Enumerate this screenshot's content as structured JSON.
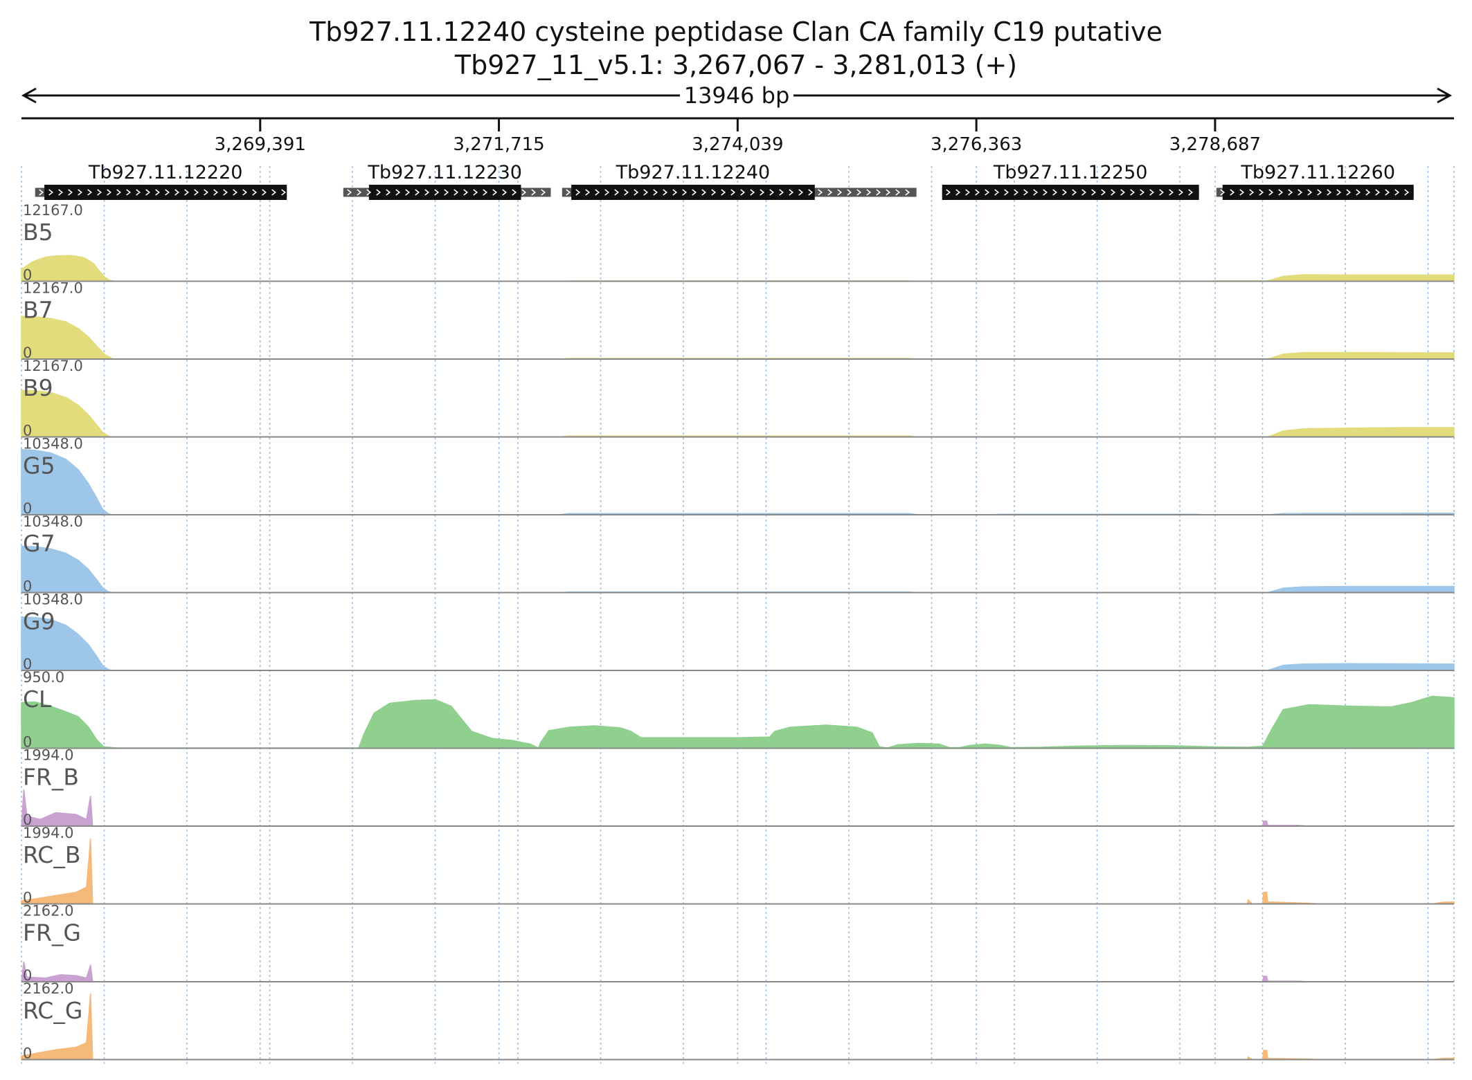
{
  "title": {
    "line1": "Tb927.11.12240  cysteine peptidase  Clan CA  family C19  putative",
    "line2": "Tb927_11_v5.1: 3,267,067 - 3,281,013 (+)"
  },
  "span_label": "13946 bp",
  "chart_data": {
    "type": "area",
    "chromosome": "Tb927_11_v5.1",
    "strand": "+",
    "xlim": [
      3267067,
      3281013
    ],
    "ticks": [
      {
        "value": 3269391,
        "label": "3,269,391"
      },
      {
        "value": 3271715,
        "label": "3,271,715"
      },
      {
        "value": 3274039,
        "label": "3,274,039"
      },
      {
        "value": 3276363,
        "label": "3,276,363"
      },
      {
        "value": 3278687,
        "label": "3,278,687"
      }
    ],
    "genes": [
      {
        "name": "Tb927.11.12220",
        "cds": [
          3267290,
          3269650
        ],
        "utr": [
          3267200,
          3269650
        ]
      },
      {
        "name": "Tb927.11.12230",
        "cds": [
          3270450,
          3271930
        ],
        "utr": [
          3270200,
          3272220
        ]
      },
      {
        "name": "Tb927.11.12240",
        "cds": [
          3272420,
          3274790
        ],
        "utr": [
          3272330,
          3275780
        ]
      },
      {
        "name": "Tb927.11.12250",
        "cds": [
          3276030,
          3278530
        ],
        "utr": [
          3276030,
          3278530
        ]
      },
      {
        "name": "Tb927.11.12260",
        "cds": [
          3278760,
          3280620
        ],
        "utr": [
          3278700,
          3280620
        ]
      }
    ],
    "tracks": [
      {
        "name": "B5",
        "ymax_label": "12167.0",
        "ymin_label": "0",
        "ymax": 12167,
        "color": "#e3dc7c",
        "points": [
          [
            3267067,
            2200
          ],
          [
            3267180,
            3600
          ],
          [
            3267300,
            4400
          ],
          [
            3267420,
            4650
          ],
          [
            3267560,
            4700
          ],
          [
            3267680,
            4300
          ],
          [
            3267770,
            3200
          ],
          [
            3267820,
            2000
          ],
          [
            3267880,
            700
          ],
          [
            3267930,
            150
          ],
          [
            3267980,
            0
          ],
          [
            3272300,
            0
          ],
          [
            3272400,
            60
          ],
          [
            3275700,
            60
          ],
          [
            3275800,
            0
          ],
          [
            3278600,
            0
          ],
          [
            3278700,
            80
          ],
          [
            3279200,
            80
          ],
          [
            3279350,
            900
          ],
          [
            3279550,
            1200
          ],
          [
            3280000,
            1150
          ],
          [
            3281013,
            1150
          ]
        ]
      },
      {
        "name": "B7",
        "ymax_label": "12167.0",
        "ymin_label": "0",
        "ymax": 12167,
        "color": "#e3dc7c",
        "points": [
          [
            3267067,
            7800
          ],
          [
            3267200,
            7700
          ],
          [
            3267350,
            7400
          ],
          [
            3267500,
            6800
          ],
          [
            3267620,
            5600
          ],
          [
            3267720,
            4000
          ],
          [
            3267800,
            2400
          ],
          [
            3267880,
            800
          ],
          [
            3267950,
            100
          ],
          [
            3268000,
            0
          ],
          [
            3272300,
            0
          ],
          [
            3272400,
            120
          ],
          [
            3275700,
            120
          ],
          [
            3275800,
            0
          ],
          [
            3279200,
            0
          ],
          [
            3279350,
            900
          ],
          [
            3279550,
            1200
          ],
          [
            3280000,
            1200
          ],
          [
            3281013,
            1150
          ]
        ]
      },
      {
        "name": "B9",
        "ymax_label": "12167.0",
        "ymin_label": "0",
        "ymax": 12167,
        "color": "#e3dc7c",
        "points": [
          [
            3267067,
            8500
          ],
          [
            3267200,
            8400
          ],
          [
            3267350,
            8100
          ],
          [
            3267500,
            7200
          ],
          [
            3267620,
            5800
          ],
          [
            3267720,
            4000
          ],
          [
            3267800,
            2200
          ],
          [
            3267860,
            800
          ],
          [
            3267920,
            100
          ],
          [
            3267970,
            0
          ],
          [
            3272300,
            0
          ],
          [
            3272400,
            180
          ],
          [
            3275700,
            180
          ],
          [
            3275800,
            0
          ],
          [
            3279200,
            0
          ],
          [
            3279350,
            1100
          ],
          [
            3279550,
            1500
          ],
          [
            3280000,
            1600
          ],
          [
            3280500,
            1700
          ],
          [
            3281013,
            1700
          ]
        ]
      },
      {
        "name": "G5",
        "ymax_label": "10348.0",
        "ymin_label": "0",
        "ymax": 10348,
        "color": "#9ec6e8",
        "points": [
          [
            3267067,
            10100
          ],
          [
            3267200,
            10000
          ],
          [
            3267350,
            9600
          ],
          [
            3267500,
            8600
          ],
          [
            3267620,
            7000
          ],
          [
            3267720,
            4800
          ],
          [
            3267800,
            2600
          ],
          [
            3267860,
            800
          ],
          [
            3267920,
            100
          ],
          [
            3267970,
            0
          ],
          [
            3272300,
            0
          ],
          [
            3272400,
            200
          ],
          [
            3275700,
            200
          ],
          [
            3275800,
            0
          ],
          [
            3276500,
            0
          ],
          [
            3276600,
            80
          ],
          [
            3278500,
            80
          ],
          [
            3278600,
            0
          ],
          [
            3279200,
            0
          ],
          [
            3279350,
            200
          ],
          [
            3281013,
            250
          ]
        ]
      },
      {
        "name": "G7",
        "ymax_label": "10348.0",
        "ymin_label": "0",
        "ymax": 10348,
        "color": "#9ec6e8",
        "points": [
          [
            3267067,
            7200
          ],
          [
            3267200,
            7100
          ],
          [
            3267350,
            6800
          ],
          [
            3267500,
            6100
          ],
          [
            3267620,
            5000
          ],
          [
            3267720,
            3600
          ],
          [
            3267800,
            2000
          ],
          [
            3267860,
            700
          ],
          [
            3267920,
            100
          ],
          [
            3267970,
            0
          ],
          [
            3272300,
            0
          ],
          [
            3272400,
            100
          ],
          [
            3275700,
            100
          ],
          [
            3275800,
            0
          ],
          [
            3279200,
            0
          ],
          [
            3279350,
            700
          ],
          [
            3279550,
            900
          ],
          [
            3280000,
            950
          ],
          [
            3281013,
            950
          ]
        ]
      },
      {
        "name": "G9",
        "ymax_label": "10348.0",
        "ymin_label": "0",
        "ymax": 10348,
        "color": "#9ec6e8",
        "points": [
          [
            3267067,
            8300
          ],
          [
            3267200,
            8200
          ],
          [
            3267350,
            7900
          ],
          [
            3267500,
            7000
          ],
          [
            3267620,
            5600
          ],
          [
            3267720,
            4000
          ],
          [
            3267800,
            2200
          ],
          [
            3267860,
            700
          ],
          [
            3267920,
            100
          ],
          [
            3267970,
            0
          ],
          [
            3279200,
            0
          ],
          [
            3279350,
            800
          ],
          [
            3279550,
            1000
          ],
          [
            3280000,
            1050
          ],
          [
            3281013,
            1000
          ]
        ]
      },
      {
        "name": "CL",
        "ymax_label": "950.0",
        "ymin_label": "0",
        "ymax": 950,
        "color": "#8fd08f",
        "points": [
          [
            3267067,
            650
          ],
          [
            3267200,
            660
          ],
          [
            3267350,
            600
          ],
          [
            3267500,
            520
          ],
          [
            3267620,
            450
          ],
          [
            3267720,
            300
          ],
          [
            3267800,
            120
          ],
          [
            3267870,
            20
          ],
          [
            3268000,
            5
          ],
          [
            3270350,
            5
          ],
          [
            3270400,
            200
          ],
          [
            3270500,
            500
          ],
          [
            3270650,
            640
          ],
          [
            3270900,
            680
          ],
          [
            3271100,
            690
          ],
          [
            3271250,
            600
          ],
          [
            3271350,
            420
          ],
          [
            3271450,
            240
          ],
          [
            3271650,
            140
          ],
          [
            3271850,
            110
          ],
          [
            3272020,
            60
          ],
          [
            3272100,
            5
          ],
          [
            3272120,
            80
          ],
          [
            3272200,
            250
          ],
          [
            3272400,
            300
          ],
          [
            3272650,
            320
          ],
          [
            3272900,
            290
          ],
          [
            3273000,
            240
          ],
          [
            3273100,
            150
          ],
          [
            3273400,
            150
          ],
          [
            3274000,
            150
          ],
          [
            3274350,
            160
          ],
          [
            3274400,
            240
          ],
          [
            3274550,
            300
          ],
          [
            3274900,
            330
          ],
          [
            3275200,
            300
          ],
          [
            3275350,
            220
          ],
          [
            3275420,
            20
          ],
          [
            3275500,
            5
          ],
          [
            3275600,
            50
          ],
          [
            3275800,
            70
          ],
          [
            3276000,
            60
          ],
          [
            3276100,
            10
          ],
          [
            3276200,
            10
          ],
          [
            3276300,
            40
          ],
          [
            3276450,
            60
          ],
          [
            3276600,
            40
          ],
          [
            3276700,
            10
          ],
          [
            3277000,
            15
          ],
          [
            3277300,
            30
          ],
          [
            3277800,
            40
          ],
          [
            3278300,
            35
          ],
          [
            3278700,
            20
          ],
          [
            3279000,
            15
          ],
          [
            3279150,
            30
          ],
          [
            3279250,
            300
          ],
          [
            3279350,
            550
          ],
          [
            3279600,
            620
          ],
          [
            3280000,
            600
          ],
          [
            3280400,
            590
          ],
          [
            3280600,
            650
          ],
          [
            3280800,
            740
          ],
          [
            3281013,
            720
          ]
        ]
      },
      {
        "name": "FR_B",
        "ymax_label": "1994.0",
        "ymin_label": "0",
        "ymax": 1994,
        "color": "#c9a2d1",
        "points": [
          [
            3267067,
            0
          ],
          [
            3267090,
            1100
          ],
          [
            3267120,
            300
          ],
          [
            3267250,
            200
          ],
          [
            3267400,
            400
          ],
          [
            3267600,
            350
          ],
          [
            3267700,
            200
          ],
          [
            3267740,
            900
          ],
          [
            3267760,
            0
          ],
          [
            3279150,
            0
          ],
          [
            3279160,
            150
          ],
          [
            3279190,
            150
          ],
          [
            3279200,
            20
          ],
          [
            3279500,
            20
          ],
          [
            3279600,
            0
          ],
          [
            3281013,
            0
          ]
        ]
      },
      {
        "name": "RC_B",
        "ymax_label": "1994.0",
        "ymin_label": "0",
        "ymax": 1994,
        "color": "#f5b97a",
        "points": [
          [
            3267067,
            100
          ],
          [
            3267200,
            150
          ],
          [
            3267400,
            250
          ],
          [
            3267600,
            350
          ],
          [
            3267700,
            500
          ],
          [
            3267740,
            1950
          ],
          [
            3267760,
            0
          ],
          [
            3279000,
            0
          ],
          [
            3279010,
            120
          ],
          [
            3279050,
            0
          ],
          [
            3279150,
            0
          ],
          [
            3279160,
            350
          ],
          [
            3279190,
            350
          ],
          [
            3279200,
            60
          ],
          [
            3279600,
            20
          ],
          [
            3279700,
            0
          ],
          [
            3280800,
            0
          ],
          [
            3280900,
            50
          ],
          [
            3281013,
            60
          ]
        ]
      },
      {
        "name": "FR_G",
        "ymax_label": "2162.0",
        "ymin_label": "0",
        "ymax": 2162,
        "color": "#c9a2d1",
        "points": [
          [
            3267067,
            0
          ],
          [
            3267090,
            650
          ],
          [
            3267120,
            150
          ],
          [
            3267300,
            120
          ],
          [
            3267450,
            230
          ],
          [
            3267600,
            200
          ],
          [
            3267700,
            120
          ],
          [
            3267740,
            550
          ],
          [
            3267760,
            0
          ],
          [
            3279150,
            0
          ],
          [
            3279160,
            180
          ],
          [
            3279190,
            180
          ],
          [
            3279200,
            20
          ],
          [
            3279500,
            20
          ],
          [
            3279600,
            0
          ],
          [
            3281013,
            0
          ]
        ]
      },
      {
        "name": "RC_G",
        "ymax_label": "2162.0",
        "ymin_label": "0",
        "ymax": 2162,
        "color": "#f5b97a",
        "points": [
          [
            3267067,
            120
          ],
          [
            3267200,
            200
          ],
          [
            3267400,
            320
          ],
          [
            3267600,
            400
          ],
          [
            3267700,
            550
          ],
          [
            3267740,
            2150
          ],
          [
            3267760,
            0
          ],
          [
            3279000,
            0
          ],
          [
            3279010,
            80
          ],
          [
            3279050,
            0
          ],
          [
            3279150,
            0
          ],
          [
            3279160,
            300
          ],
          [
            3279190,
            300
          ],
          [
            3279200,
            40
          ],
          [
            3279600,
            20
          ],
          [
            3279700,
            0
          ],
          [
            3280800,
            0
          ],
          [
            3280900,
            40
          ],
          [
            3281013,
            50
          ]
        ]
      }
    ]
  }
}
